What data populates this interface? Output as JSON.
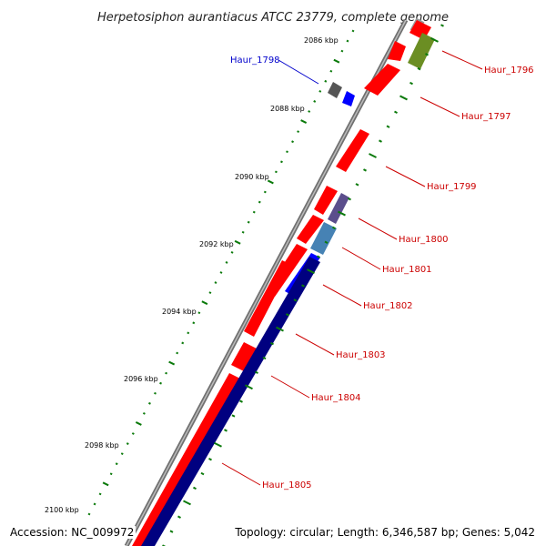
{
  "title": "Herpetosiphon aurantiacus ATCC 23779, complete genome",
  "footer": {
    "accession": "Accession: NC_009972",
    "summary": "Topology: circular; Length: 6,346,587 bp; Genes: 5,042"
  },
  "ticks": [
    "2086 kbp",
    "2088 kbp",
    "2090 kbp",
    "2092 kbp",
    "2094 kbp",
    "2096 kbp",
    "2098 kbp",
    "2100 kbp"
  ],
  "gene_labels": [
    {
      "name": "Haur_1796",
      "color": "#cc0000"
    },
    {
      "name": "Haur_1797",
      "color": "#cc0000"
    },
    {
      "name": "Haur_1798",
      "color": "#0000cc"
    },
    {
      "name": "Haur_1799",
      "color": "#cc0000"
    },
    {
      "name": "Haur_1800",
      "color": "#cc0000"
    },
    {
      "name": "Haur_1801",
      "color": "#cc0000"
    },
    {
      "name": "Haur_1802",
      "color": "#cc0000"
    },
    {
      "name": "Haur_1803",
      "color": "#cc0000"
    },
    {
      "name": "Haur_1804",
      "color": "#cc0000"
    },
    {
      "name": "Haur_1805",
      "color": "#cc0000"
    }
  ],
  "colors": {
    "cds": "#ff0000",
    "rna": "#0000ff",
    "gc_positive": "#000080",
    "gc_negative": "#6b8e23",
    "backbone": "#888888",
    "ticks": "#0b7a0b"
  }
}
